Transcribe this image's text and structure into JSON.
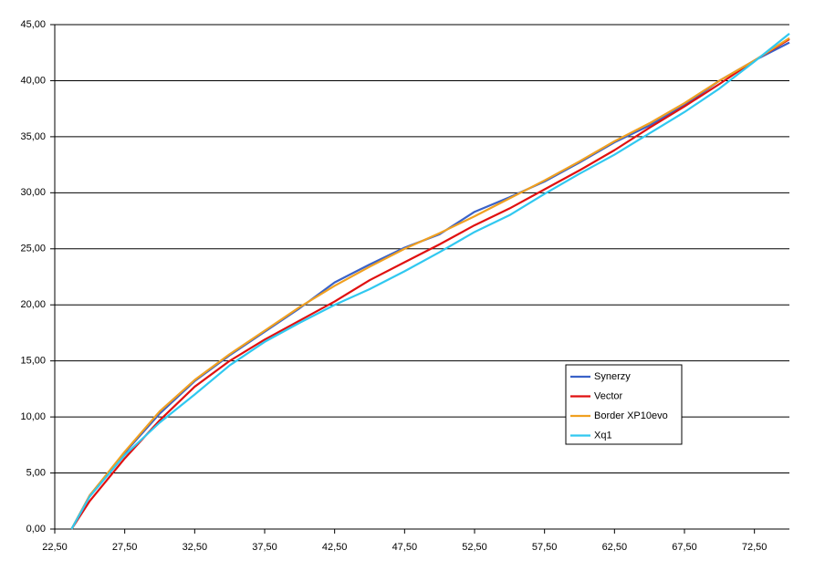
{
  "chart_data": {
    "type": "line",
    "x": [
      23.7,
      25,
      27.5,
      30,
      32.5,
      35,
      37.5,
      40,
      42.5,
      45,
      47.5,
      50,
      52.5,
      55,
      57.5,
      60,
      62.5,
      65,
      67.5,
      70,
      72.5,
      75
    ],
    "series": [
      {
        "name": "Synerzy",
        "color": "#3a62c8",
        "values": [
          0,
          3,
          6.8,
          10.3,
          13.2,
          15.5,
          17.6,
          19.7,
          22,
          23.6,
          25.1,
          26.3,
          28.3,
          29.6,
          31,
          32.7,
          34.5,
          36,
          37.8,
          40,
          41.8,
          43.4
        ]
      },
      {
        "name": "Vector",
        "color": "#e01010",
        "values": [
          0,
          2.5,
          6.3,
          9.7,
          12.7,
          15,
          16.9,
          18.6,
          20.3,
          22.2,
          23.8,
          25.4,
          27.1,
          28.6,
          30.3,
          32,
          33.8,
          35.8,
          37.7,
          39.7,
          41.8,
          43.7
        ]
      },
      {
        "name": "Border XP10evo",
        "color": "#f0a020",
        "values": [
          0,
          3,
          6.9,
          10.5,
          13.3,
          15.6,
          17.7,
          19.8,
          21.7,
          23.4,
          25,
          26.4,
          27.9,
          29.5,
          31.1,
          32.8,
          34.6,
          36.2,
          38,
          40,
          41.8,
          43.8
        ]
      },
      {
        "name": "Xq1",
        "color": "#30c8f0",
        "values": [
          0,
          2.9,
          6.6,
          9.5,
          12,
          14.6,
          16.7,
          18.4,
          20,
          21.4,
          23,
          24.7,
          26.5,
          28,
          29.9,
          31.7,
          33.4,
          35.3,
          37.2,
          39.3,
          41.7,
          44.2
        ]
      }
    ],
    "xlim": [
      22.5,
      75
    ],
    "xticks": [
      {
        "value": 22.5,
        "label": "22,50"
      },
      {
        "value": 27.5,
        "label": "27,50"
      },
      {
        "value": 32.5,
        "label": "32,50"
      },
      {
        "value": 37.5,
        "label": "37,50"
      },
      {
        "value": 42.5,
        "label": "42,50"
      },
      {
        "value": 47.5,
        "label": "47,50"
      },
      {
        "value": 52.5,
        "label": "52,50"
      },
      {
        "value": 57.5,
        "label": "57,50"
      },
      {
        "value": 62.5,
        "label": "62,50"
      },
      {
        "value": 67.5,
        "label": "67,50"
      },
      {
        "value": 72.5,
        "label": "72,50"
      }
    ],
    "ylim": [
      0,
      45
    ],
    "yticks": [
      {
        "value": 0,
        "label": "0,00"
      },
      {
        "value": 5,
        "label": "5,00"
      },
      {
        "value": 10,
        "label": "10,00"
      },
      {
        "value": 15,
        "label": "15,00"
      },
      {
        "value": 20,
        "label": "20,00"
      },
      {
        "value": 25,
        "label": "25,00"
      },
      {
        "value": 30,
        "label": "30,00"
      },
      {
        "value": 35,
        "label": "35,00"
      },
      {
        "value": 40,
        "label": "40,00"
      },
      {
        "value": 45,
        "label": "45,00"
      }
    ],
    "grid": true
  }
}
